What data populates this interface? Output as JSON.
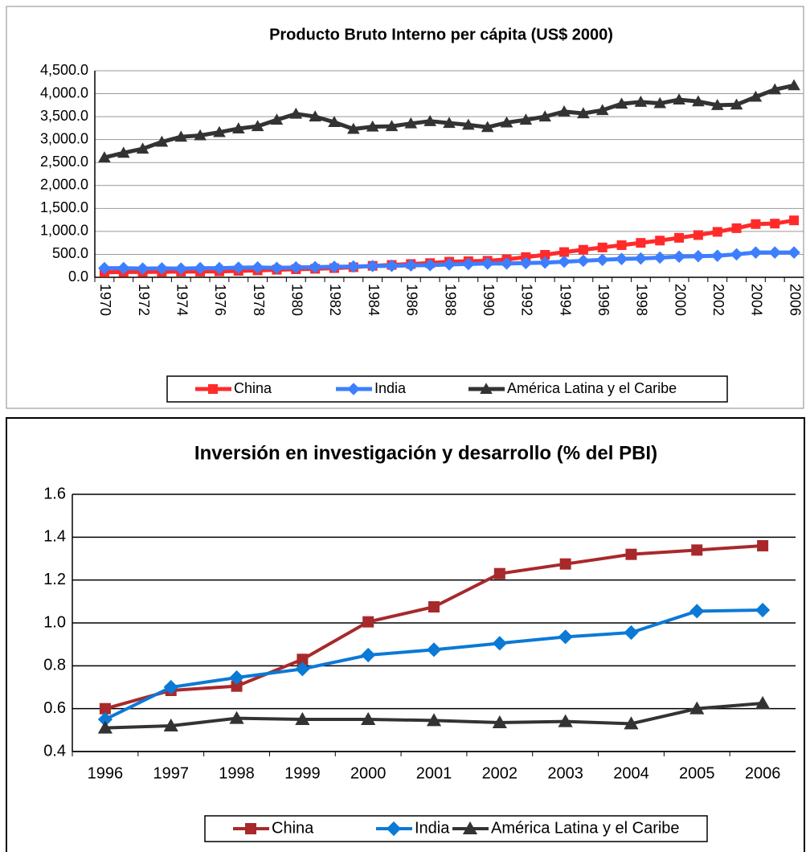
{
  "chart_data": [
    {
      "type": "line",
      "title": "Producto Bruto Interno per cápita (US$ 2000)",
      "categories": [
        "1970",
        null,
        "1972",
        null,
        "1974",
        null,
        "1976",
        null,
        "1978",
        null,
        "1980",
        null,
        "1982",
        null,
        "1984",
        null,
        "1986",
        null,
        "1988",
        null,
        "1990",
        null,
        "1992",
        null,
        "1994",
        null,
        "1996",
        null,
        "1998",
        null,
        "2000",
        null,
        "2002",
        null,
        "2004",
        null,
        "2006"
      ],
      "series": [
        {
          "name": "China",
          "color": "#ff2b2b",
          "marker": "square",
          "values": [
            110,
            115,
            115,
            120,
            125,
            125,
            130,
            140,
            150,
            165,
            175,
            185,
            200,
            220,
            250,
            270,
            290,
            310,
            340,
            350,
            360,
            390,
            440,
            490,
            550,
            600,
            650,
            700,
            750,
            800,
            860,
            920,
            990,
            1070,
            1160,
            1170,
            1240
          ]
        },
        {
          "name": "India",
          "color": "#3d7eff",
          "marker": "diamond",
          "values": [
            200,
            200,
            190,
            195,
            190,
            200,
            200,
            210,
            215,
            205,
            215,
            220,
            230,
            235,
            245,
            250,
            260,
            265,
            280,
            290,
            300,
            300,
            310,
            320,
            340,
            360,
            380,
            400,
            410,
            430,
            450,
            460,
            470,
            500,
            540,
            540,
            540
          ]
        },
        {
          "name": "América Latina y el Caribe",
          "color": "#333333",
          "marker": "triangle",
          "values": [
            2610,
            2710,
            2800,
            2950,
            3060,
            3090,
            3160,
            3240,
            3290,
            3430,
            3560,
            3500,
            3380,
            3230,
            3280,
            3290,
            3350,
            3400,
            3360,
            3320,
            3270,
            3370,
            3430,
            3500,
            3610,
            3570,
            3640,
            3780,
            3820,
            3790,
            3870,
            3830,
            3750,
            3760,
            3930,
            4090,
            4180
          ]
        }
      ],
      "ylim": [
        0,
        4500
      ],
      "yticks": [
        {
          "value": 0,
          "label": "0.0"
        },
        {
          "value": 500,
          "label": "500.0"
        },
        {
          "value": 1000,
          "label": "1,000.0"
        },
        {
          "value": 1500,
          "label": "1,500.0"
        },
        {
          "value": 2000,
          "label": "2,000.0"
        },
        {
          "value": 2500,
          "label": "2,500.0"
        },
        {
          "value": 3000,
          "label": "3,000.0"
        },
        {
          "value": 3500,
          "label": "3,500.0"
        },
        {
          "value": 4000,
          "label": "4,000.0"
        },
        {
          "value": 4500,
          "label": "4,500.0"
        }
      ],
      "grid": true,
      "legend": "bottom"
    },
    {
      "type": "line",
      "title": "Inversión en investigación y desarrollo (% del PBI)",
      "categories": [
        "1996",
        "1997",
        "1998",
        "1999",
        "2000",
        "2001",
        "2002",
        "2003",
        "2004",
        "2005",
        "2006"
      ],
      "series": [
        {
          "name": "China",
          "color": "#a8292b",
          "marker": "square",
          "values": [
            0.6,
            0.685,
            0.705,
            0.83,
            1.005,
            1.075,
            1.23,
            1.275,
            1.32,
            1.34,
            1.36
          ]
        },
        {
          "name": "India",
          "color": "#0b79d6",
          "marker": "diamond",
          "values": [
            0.55,
            0.7,
            0.745,
            0.785,
            0.85,
            0.875,
            0.905,
            0.935,
            0.955,
            1.055,
            1.06
          ]
        },
        {
          "name": "América Latina  y el Caribe",
          "color": "#333333",
          "marker": "triangle",
          "values": [
            0.51,
            0.52,
            0.555,
            0.55,
            0.55,
            0.545,
            0.535,
            0.54,
            0.53,
            0.6,
            0.625
          ]
        }
      ],
      "ylim": [
        0.4,
        1.6
      ],
      "yticks": [
        0.4,
        0.6,
        0.8,
        {
          "value": 1,
          "label": "1.0"
        },
        1.2,
        1.4,
        1.6
      ],
      "grid": true,
      "legend": "bottom"
    }
  ]
}
